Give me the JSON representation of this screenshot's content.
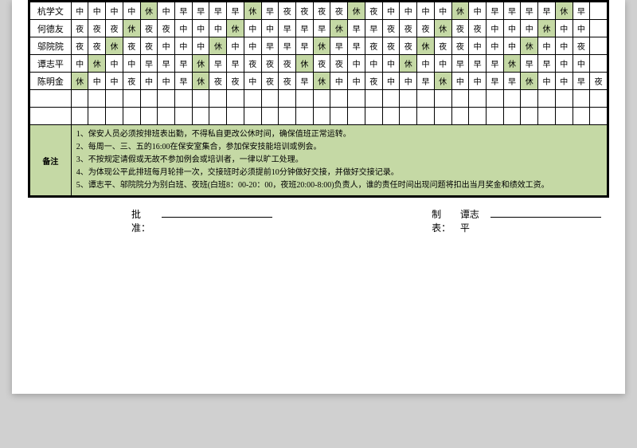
{
  "colors": {
    "rest_bg": "#c5d9a5",
    "border": "#000000",
    "page_bg": "#ffffff",
    "outer_bg": "#d0d0d0"
  },
  "shift_legend": {
    "早": "morning",
    "中": "afternoon",
    "夜": "night",
    "休": "rest"
  },
  "schedule": {
    "num_day_columns": 31,
    "rows": [
      {
        "name": "杭学文",
        "shifts": [
          "中",
          "中",
          "中",
          "中",
          "休",
          "中",
          "早",
          "早",
          "早",
          "早",
          "休",
          "早",
          "夜",
          "夜",
          "夜",
          "夜",
          "休",
          "夜",
          "中",
          "中",
          "中",
          "中",
          "休",
          "中",
          "早",
          "早",
          "早",
          "早",
          "休",
          "早",
          ""
        ]
      },
      {
        "name": "何德友",
        "shifts": [
          "夜",
          "夜",
          "夜",
          "休",
          "夜",
          "夜",
          "中",
          "中",
          "中",
          "休",
          "中",
          "中",
          "早",
          "早",
          "早",
          "休",
          "早",
          "早",
          "夜",
          "夜",
          "夜",
          "休",
          "夜",
          "夜",
          "中",
          "中",
          "中",
          "休",
          "中",
          "中",
          ""
        ]
      },
      {
        "name": "邬院院",
        "shifts": [
          "夜",
          "夜",
          "休",
          "夜",
          "夜",
          "中",
          "中",
          "中",
          "休",
          "中",
          "中",
          "早",
          "早",
          "早",
          "休",
          "早",
          "早",
          "夜",
          "夜",
          "夜",
          "休",
          "夜",
          "夜",
          "中",
          "中",
          "中",
          "休",
          "中",
          "中",
          "夜",
          ""
        ]
      },
      {
        "name": "谭志平",
        "shifts": [
          "中",
          "休",
          "中",
          "中",
          "早",
          "早",
          "早",
          "休",
          "早",
          "早",
          "夜",
          "夜",
          "夜",
          "休",
          "夜",
          "夜",
          "中",
          "中",
          "中",
          "休",
          "中",
          "中",
          "早",
          "早",
          "早",
          "休",
          "早",
          "早",
          "中",
          "中",
          ""
        ]
      },
      {
        "name": "陈明金",
        "shifts": [
          "休",
          "中",
          "中",
          "夜",
          "中",
          "中",
          "早",
          "休",
          "夜",
          "夜",
          "中",
          "夜",
          "夜",
          "早",
          "休",
          "中",
          "中",
          "夜",
          "中",
          "中",
          "早",
          "休",
          "中",
          "中",
          "早",
          "早",
          "休",
          "中",
          "中",
          "早",
          "夜"
        ]
      }
    ],
    "empty_rows": 2
  },
  "notes": {
    "label": "备注",
    "items": [
      "1、保安人员必须按排班表出勤，不得私自更改公休时间，确保值班正常运转。",
      "2、每周一、三、五的16:00在保安室集合，参加保安技能培训或例会。",
      "3、不按规定请假或无故不参加例会或培训者，一律以旷工处理。",
      "4、为体现公平此排班每月轮排一次，交接班时必须提前10分钟做好交接，并做好交接记录。",
      "5、谭志平、邬院院分为别白班、夜班(白班8：00-20：00，夜班20:00-8:00)负责人，谁的责任时间出现问题将扣出当月奖金和绩效工资。"
    ]
  },
  "signatures": {
    "approve_label": "批准：",
    "prepare_label": "制表：",
    "prepare_name": "谭志平"
  }
}
